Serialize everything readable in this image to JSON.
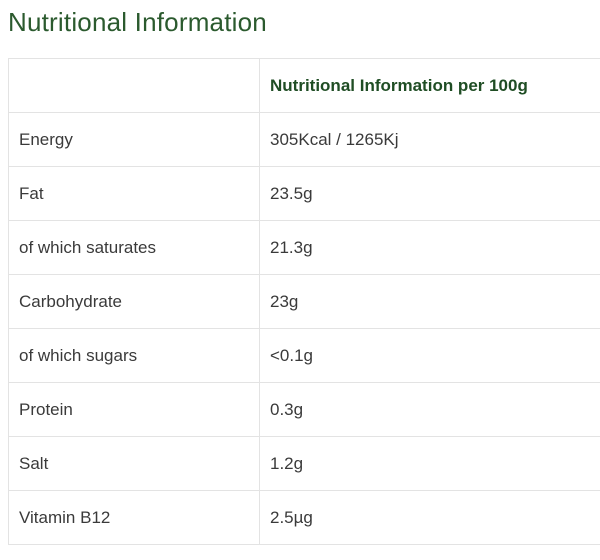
{
  "title": "Nutritional Information",
  "table": {
    "headers": [
      "",
      "Nutritional Information per 100g"
    ],
    "rows": [
      {
        "nutrient": "Energy",
        "value": "305Kcal / 1265Kj"
      },
      {
        "nutrient": "Fat",
        "value": "23.5g"
      },
      {
        "nutrient": "of which saturates",
        "value": "21.3g"
      },
      {
        "nutrient": "Carbohydrate",
        "value": "23g"
      },
      {
        "nutrient": "of which sugars",
        "value": "<0.1g"
      },
      {
        "nutrient": "Protein",
        "value": "0.3g"
      },
      {
        "nutrient": "Salt",
        "value": "1.2g"
      },
      {
        "nutrient": "Vitamin B12",
        "value": "2.5µg"
      }
    ]
  },
  "colors": {
    "title": "#2b5a2e",
    "header_text": "#1f4d24",
    "body_text": "#3a3a3a",
    "border": "#e3e3e3"
  }
}
